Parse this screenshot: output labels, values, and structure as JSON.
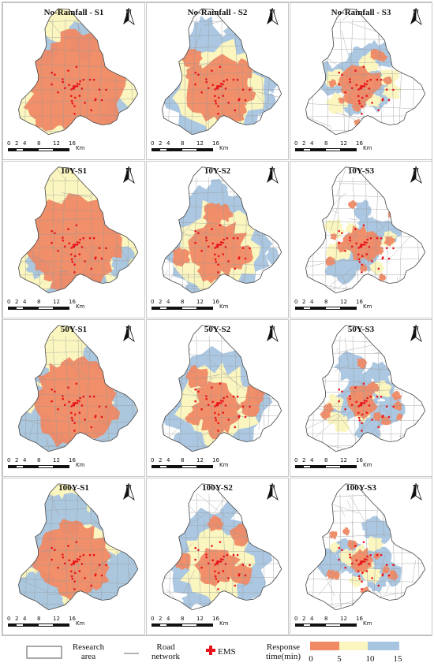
{
  "panels": [
    {
      "title": "No-Rainfall - S1",
      "scenario": "S1"
    },
    {
      "title": "No-Rainfall - S2",
      "scenario": "S2"
    },
    {
      "title": "No-Rainfall - S3",
      "scenario": "S3"
    },
    {
      "title": "10Y-S1",
      "scenario": "S1"
    },
    {
      "title": "10Y-S2",
      "scenario": "S2"
    },
    {
      "title": "10Y-S3",
      "scenario": "S3"
    },
    {
      "title": "50Y-S1",
      "scenario": "S1"
    },
    {
      "title": "50Y-S2",
      "scenario": "S2"
    },
    {
      "title": "50Y-S3",
      "scenario": "S3"
    },
    {
      "title": "100Y-S1",
      "scenario": "S1"
    },
    {
      "title": "100Y-S2",
      "scenario": "S2"
    },
    {
      "title": "100Y-S3",
      "scenario": "S3"
    }
  ],
  "north_label": "N",
  "scale_labels": [
    "0",
    "2",
    "4",
    "8",
    "12",
    "16"
  ],
  "scale_unit": "Km",
  "legend": {
    "research_area_line1": "Research",
    "research_area_line2": "area",
    "road_line1": "Road",
    "road_line2": "network",
    "ems": "EMS",
    "response_line1": "Response",
    "response_line2": "time(min)",
    "ticks": [
      "0",
      "5",
      "10",
      "15"
    ]
  },
  "colors": {
    "band_0_5": "#f08a65",
    "band_5_10": "#fbf6bf",
    "band_10_15": "#a7c5e0",
    "ems": "#e8141c",
    "road": "#9a9a9a",
    "boundary": "#444444"
  }
}
